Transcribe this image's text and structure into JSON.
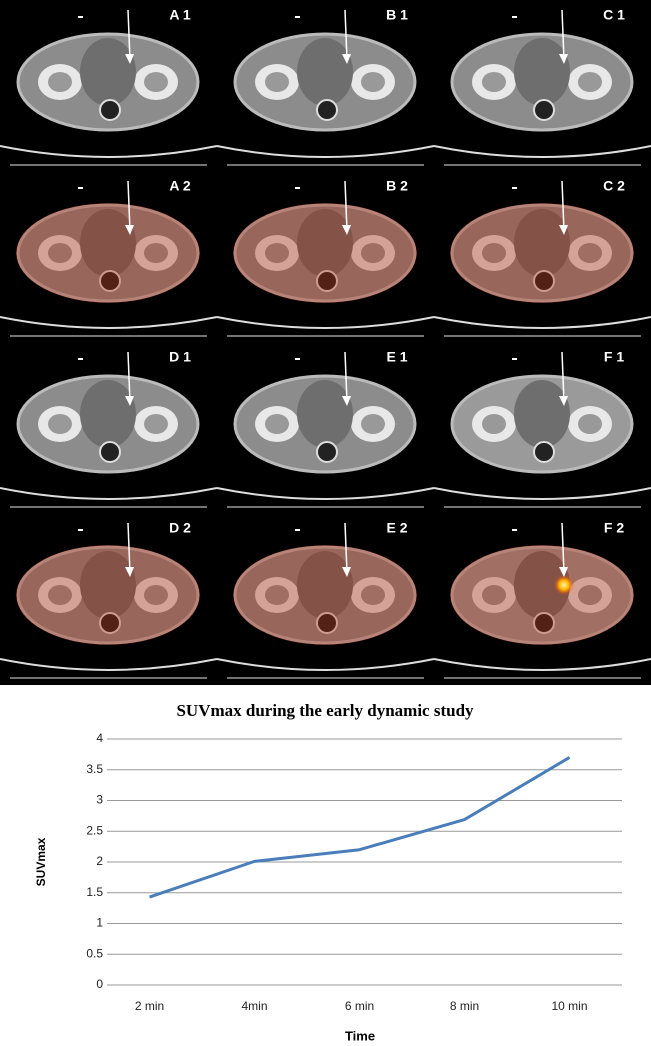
{
  "panels": [
    "A 1",
    "B 1",
    "C 1",
    "A 2",
    "B 2",
    "C 2",
    "D 1",
    "E 1",
    "F 1",
    "D 2",
    "E 2",
    "F 2"
  ],
  "chart_data": {
    "type": "line",
    "title": "SUVmax during the early dynamic study",
    "x_label": "Time",
    "y_label": "SUVmax",
    "categories": [
      "2 min",
      "4min",
      "6 min",
      "8 min",
      "10 min"
    ],
    "series": [
      {
        "name": "SUVmax",
        "color": "#4a7ebb",
        "values": [
          1.43,
          2.01,
          2.2,
          2.69,
          3.7
        ]
      }
    ],
    "ylim": [
      0,
      4
    ],
    "yticks": [
      0,
      0.5,
      1,
      1.5,
      2,
      2.5,
      3,
      3.5,
      4
    ],
    "grid": true
  }
}
